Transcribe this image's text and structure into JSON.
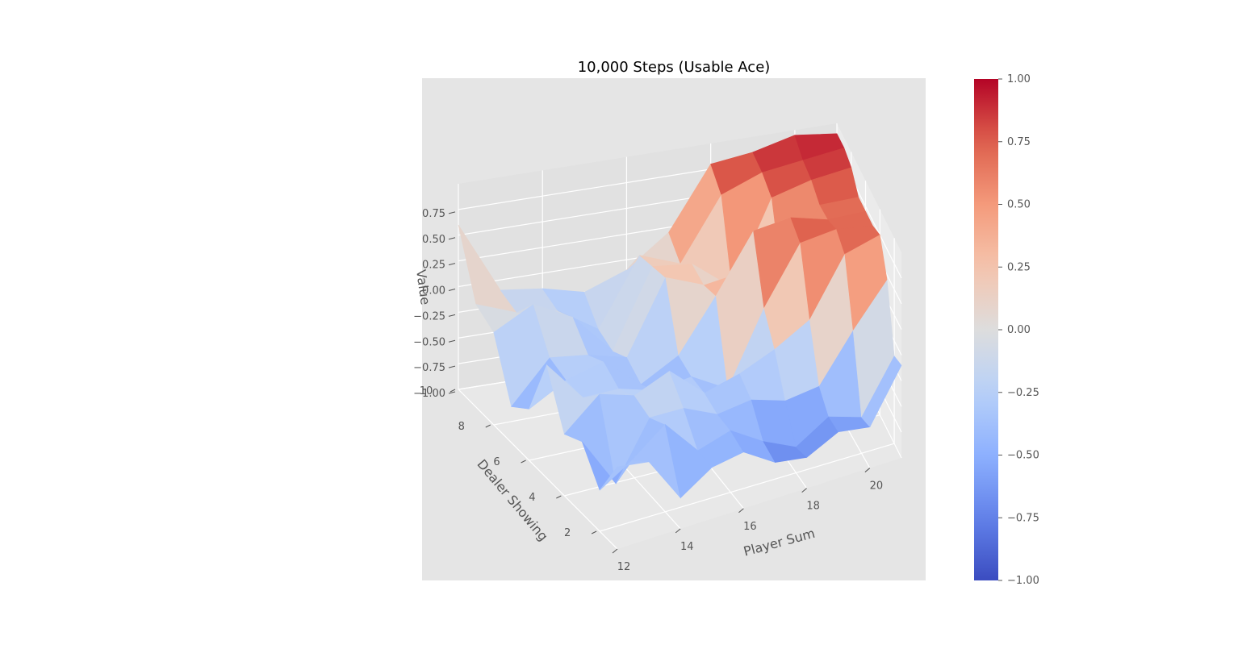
{
  "chart_data": {
    "type": "surface",
    "title": "10,000 Steps (Usable Ace)",
    "xlabel": "Player Sum",
    "ylabel": "Dealer Showing",
    "zlabel": "Value",
    "colormap": "coolwarm",
    "xlim": [
      12,
      21
    ],
    "ylim": [
      1,
      10
    ],
    "zlim": [
      -1,
      1
    ],
    "x_ticks": [
      12,
      14,
      16,
      18,
      20
    ],
    "y_ticks": [
      2,
      4,
      6,
      8,
      10
    ],
    "z_ticks": [
      "−1.00",
      "−0.75",
      "−0.50",
      "−0.25",
      "0.00",
      "0.25",
      "0.50",
      "0.75"
    ],
    "z_tick_values": [
      -1.0,
      -0.75,
      -0.5,
      -0.25,
      0.0,
      0.25,
      0.5,
      0.75
    ],
    "colorbar": {
      "ticks": [
        "1.00",
        "0.75",
        "0.50",
        "0.25",
        "0.00",
        "−0.25",
        "−0.50",
        "−0.75",
        "−1.00"
      ],
      "tick_values": [
        1.0,
        0.75,
        0.5,
        0.25,
        0.0,
        -0.25,
        -0.5,
        -0.75,
        -1.0
      ],
      "range": [
        -1,
        1
      ]
    },
    "x": [
      12,
      13,
      14,
      15,
      16,
      17,
      18,
      19,
      20,
      21
    ],
    "y": [
      1,
      2,
      3,
      4,
      5,
      6,
      7,
      8,
      9,
      10
    ],
    "z": [
      [
        -0.2,
        -0.25,
        -0.7,
        -0.5,
        -0.45,
        -0.65,
        -0.7,
        -0.55,
        -0.6,
        -0.1
      ],
      [
        -0.6,
        -0.4,
        -0.15,
        -0.5,
        -0.4,
        -0.6,
        -0.75,
        -0.55,
        -0.65,
        -0.15
      ],
      [
        -0.3,
        -0.8,
        -0.25,
        -0.25,
        -0.4,
        -0.35,
        -0.45,
        -0.4,
        0.05,
        0.45
      ],
      [
        -0.4,
        -0.1,
        -0.2,
        -0.05,
        -0.35,
        -0.25,
        -0.1,
        0.1,
        0.65,
        0.75
      ],
      [
        0.1,
        -0.3,
        -0.3,
        -0.4,
        -0.35,
        -0.55,
        0.15,
        0.7,
        0.75,
        0.7
      ],
      [
        -0.5,
        -0.3,
        -0.2,
        -0.5,
        -0.3,
        0.2,
        0.75,
        0.8,
        0.7,
        0.7
      ],
      [
        -0.65,
        -0.25,
        -0.3,
        -0.4,
        0.3,
        0.15,
        0.2,
        0.1,
        0.7,
        0.7
      ],
      [
        -0.1,
        0.1,
        -0.1,
        -0.5,
        0.25,
        0.2,
        -0.1,
        0.7,
        0.8,
        0.85
      ],
      [
        0.0,
        -0.15,
        -0.2,
        -0.45,
        0.2,
        0.05,
        0.65,
        0.8,
        0.85,
        0.9
      ],
      [
        0.6,
        -0.1,
        -0.15,
        -0.25,
        -0.1,
        0.2,
        0.8,
        0.85,
        0.95,
        0.9
      ]
    ]
  }
}
